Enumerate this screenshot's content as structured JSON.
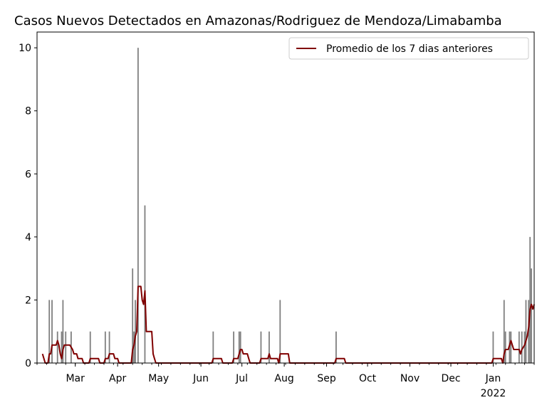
{
  "chart_data": {
    "type": "bar",
    "title": "Casos Nuevos Detectados en Amazonas/Rodriguez de Mendoza/Limabamba",
    "xlabel": "",
    "ylabel": "",
    "ylim": [
      0,
      10.5
    ],
    "y_ticks": [
      0,
      2,
      4,
      6,
      8,
      10
    ],
    "x_range": [
      "2021-02-01",
      "2022-01-31"
    ],
    "x_ticks": [
      {
        "date": "2021-03-01",
        "label": "Mar"
      },
      {
        "date": "2021-04-01",
        "label": "Apr"
      },
      {
        "date": "2021-05-01",
        "label": "May"
      },
      {
        "date": "2021-06-01",
        "label": "Jun"
      },
      {
        "date": "2021-07-01",
        "label": "Jul"
      },
      {
        "date": "2021-08-01",
        "label": "Aug"
      },
      {
        "date": "2021-09-01",
        "label": "Sep"
      },
      {
        "date": "2021-10-01",
        "label": "Oct"
      },
      {
        "date": "2021-11-01",
        "label": "Nov"
      },
      {
        "date": "2021-12-01",
        "label": "Dec"
      },
      {
        "date": "2022-01-01",
        "label": "Jan",
        "sublabel": "2022"
      }
    ],
    "grid": false,
    "legend_position": "top-right",
    "bar_color": "#808080",
    "line_color": "#800000",
    "series": [
      {
        "name": "",
        "kind": "bar",
        "points": [
          [
            "2021-02-10",
            2
          ],
          [
            "2021-02-12",
            2
          ],
          [
            "2021-02-16",
            1
          ],
          [
            "2021-02-19",
            1
          ],
          [
            "2021-02-20",
            2
          ],
          [
            "2021-02-22",
            1
          ],
          [
            "2021-02-26",
            1
          ],
          [
            "2021-03-12",
            1
          ],
          [
            "2021-03-23",
            1
          ],
          [
            "2021-03-26",
            1
          ],
          [
            "2021-04-12",
            3
          ],
          [
            "2021-04-13",
            1
          ],
          [
            "2021-04-14",
            2
          ],
          [
            "2021-04-16",
            10
          ],
          [
            "2021-04-21",
            5
          ],
          [
            "2021-06-10",
            1
          ],
          [
            "2021-06-25",
            1
          ],
          [
            "2021-06-29",
            1
          ],
          [
            "2021-06-30",
            1
          ],
          [
            "2021-07-15",
            1
          ],
          [
            "2021-07-21",
            1
          ],
          [
            "2021-07-29",
            2
          ],
          [
            "2021-09-08",
            1
          ],
          [
            "2022-01-01",
            1
          ],
          [
            "2022-01-09",
            2
          ],
          [
            "2022-01-10",
            1
          ],
          [
            "2022-01-13",
            1
          ],
          [
            "2022-01-14",
            1
          ],
          [
            "2022-01-20",
            1
          ],
          [
            "2022-01-22",
            1
          ],
          [
            "2022-01-24",
            1
          ],
          [
            "2022-01-25",
            2
          ],
          [
            "2022-01-27",
            2
          ],
          [
            "2022-01-28",
            4
          ],
          [
            "2022-01-29",
            3
          ]
        ]
      },
      {
        "name": "Promedio de los 7 dias anteriores",
        "kind": "line",
        "points": [
          [
            "2021-02-05",
            0.29
          ],
          [
            "2021-02-07",
            0
          ],
          [
            "2021-02-09",
            0
          ],
          [
            "2021-02-10",
            0.29
          ],
          [
            "2021-02-11",
            0.29
          ],
          [
            "2021-02-12",
            0.57
          ],
          [
            "2021-02-15",
            0.57
          ],
          [
            "2021-02-16",
            0.71
          ],
          [
            "2021-02-17",
            0.57
          ],
          [
            "2021-02-18",
            0.29
          ],
          [
            "2021-02-19",
            0.14
          ],
          [
            "2021-02-20",
            0.43
          ],
          [
            "2021-02-21",
            0.57
          ],
          [
            "2021-02-25",
            0.57
          ],
          [
            "2021-02-27",
            0.43
          ],
          [
            "2021-02-28",
            0.29
          ],
          [
            "2021-03-02",
            0.29
          ],
          [
            "2021-03-03",
            0.14
          ],
          [
            "2021-03-06",
            0.14
          ],
          [
            "2021-03-07",
            0
          ],
          [
            "2021-03-11",
            0
          ],
          [
            "2021-03-12",
            0.14
          ],
          [
            "2021-03-18",
            0.14
          ],
          [
            "2021-03-19",
            0
          ],
          [
            "2021-03-22",
            0
          ],
          [
            "2021-03-23",
            0.14
          ],
          [
            "2021-03-25",
            0.14
          ],
          [
            "2021-03-26",
            0.29
          ],
          [
            "2021-03-29",
            0.29
          ],
          [
            "2021-03-30",
            0.14
          ],
          [
            "2021-04-01",
            0.14
          ],
          [
            "2021-04-02",
            0
          ],
          [
            "2021-04-11",
            0
          ],
          [
            "2021-04-12",
            0.43
          ],
          [
            "2021-04-13",
            0.57
          ],
          [
            "2021-04-14",
            0.86
          ],
          [
            "2021-04-15",
            1.0
          ],
          [
            "2021-04-16",
            2.43
          ],
          [
            "2021-04-18",
            2.43
          ],
          [
            "2021-04-19",
            2.0
          ],
          [
            "2021-04-20",
            1.86
          ],
          [
            "2021-04-21",
            2.29
          ],
          [
            "2021-04-22",
            1.0
          ],
          [
            "2021-04-26",
            1.0
          ],
          [
            "2021-04-27",
            0.29
          ],
          [
            "2021-04-28",
            0.14
          ],
          [
            "2021-04-29",
            0
          ],
          [
            "2021-06-09",
            0
          ],
          [
            "2021-06-10",
            0.14
          ],
          [
            "2021-06-16",
            0.14
          ],
          [
            "2021-06-17",
            0
          ],
          [
            "2021-06-24",
            0
          ],
          [
            "2021-06-25",
            0.14
          ],
          [
            "2021-06-28",
            0.14
          ],
          [
            "2021-06-29",
            0.29
          ],
          [
            "2021-06-30",
            0.43
          ],
          [
            "2021-07-01",
            0.43
          ],
          [
            "2021-07-02",
            0.29
          ],
          [
            "2021-07-05",
            0.29
          ],
          [
            "2021-07-06",
            0.14
          ],
          [
            "2021-07-07",
            0
          ],
          [
            "2021-07-14",
            0
          ],
          [
            "2021-07-15",
            0.14
          ],
          [
            "2021-07-20",
            0.14
          ],
          [
            "2021-07-21",
            0.29
          ],
          [
            "2021-07-22",
            0.14
          ],
          [
            "2021-07-27",
            0.14
          ],
          [
            "2021-07-28",
            0
          ],
          [
            "2021-07-29",
            0.29
          ],
          [
            "2021-08-04",
            0.29
          ],
          [
            "2021-08-05",
            0
          ],
          [
            "2021-09-07",
            0
          ],
          [
            "2021-09-08",
            0.14
          ],
          [
            "2021-09-14",
            0.14
          ],
          [
            "2021-09-15",
            0
          ],
          [
            "2021-12-31",
            0
          ],
          [
            "2022-01-01",
            0.14
          ],
          [
            "2022-01-07",
            0.14
          ],
          [
            "2022-01-08",
            0
          ],
          [
            "2022-01-09",
            0.29
          ],
          [
            "2022-01-10",
            0.43
          ],
          [
            "2022-01-12",
            0.43
          ],
          [
            "2022-01-13",
            0.57
          ],
          [
            "2022-01-14",
            0.71
          ],
          [
            "2022-01-15",
            0.57
          ],
          [
            "2022-01-16",
            0.43
          ],
          [
            "2022-01-20",
            0.43
          ],
          [
            "2022-01-21",
            0.29
          ],
          [
            "2022-01-22",
            0.43
          ],
          [
            "2022-01-24",
            0.57
          ],
          [
            "2022-01-25",
            0.71
          ],
          [
            "2022-01-26",
            0.86
          ],
          [
            "2022-01-27",
            1.14
          ],
          [
            "2022-01-28",
            1.71
          ],
          [
            "2022-01-29",
            1.86
          ],
          [
            "2022-01-30",
            1.71
          ],
          [
            "2022-01-31",
            1.86
          ]
        ]
      }
    ]
  }
}
